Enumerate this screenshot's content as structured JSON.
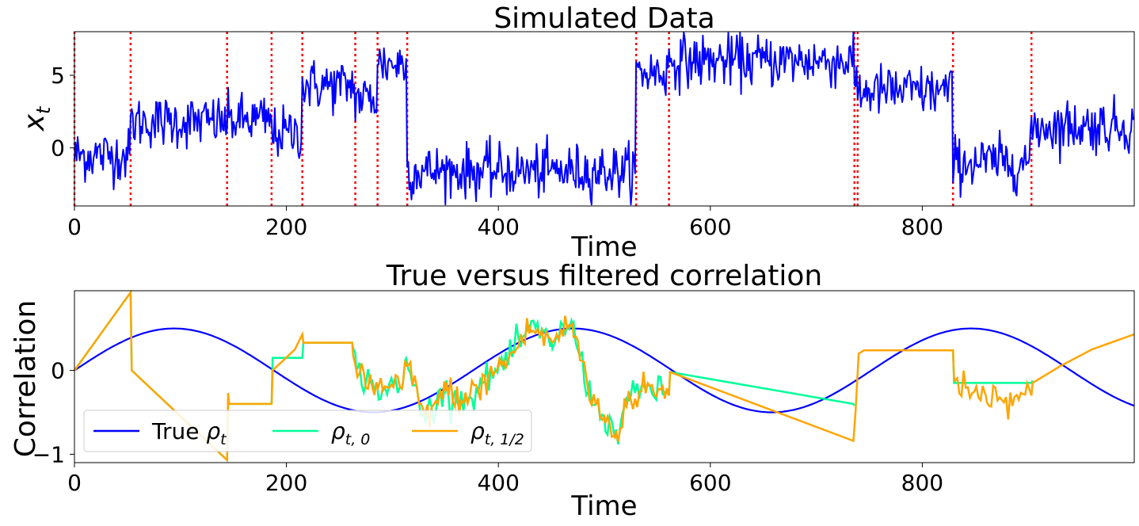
{
  "chart_data": [
    {
      "type": "line",
      "title": "Simulated Data",
      "xlabel": "Time",
      "ylabel": "x_t",
      "xlim": [
        0,
        1000
      ],
      "ylim": [
        -4,
        8
      ],
      "xticks": [
        0,
        200,
        400,
        600,
        800
      ],
      "yticks": [
        0,
        5
      ],
      "series": [
        {
          "name": "x_t",
          "color": "#0000ff",
          "segments": [
            {
              "start": 0,
              "end": 53,
              "mean": -0.5,
              "sd": 0.9
            },
            {
              "start": 53,
              "end": 144,
              "mean": 1.8,
              "sd": 0.9
            },
            {
              "start": 144,
              "end": 186,
              "mean": 1.9,
              "sd": 0.9
            },
            {
              "start": 186,
              "end": 215,
              "mean": 1.0,
              "sd": 0.9
            },
            {
              "start": 215,
              "end": 265,
              "mean": 4.3,
              "sd": 0.9
            },
            {
              "start": 265,
              "end": 286,
              "mean": 3.4,
              "sd": 0.9
            },
            {
              "start": 286,
              "end": 314,
              "mean": 5.8,
              "sd": 0.9
            },
            {
              "start": 314,
              "end": 530,
              "mean": -1.6,
              "sd": 0.9
            },
            {
              "start": 530,
              "end": 561,
              "mean": 5.2,
              "sd": 0.9
            },
            {
              "start": 561,
              "end": 736,
              "mean": 6.0,
              "sd": 0.9
            },
            {
              "start": 736,
              "end": 739,
              "mean": 4.7,
              "sd": 0.9
            },
            {
              "start": 739,
              "end": 829,
              "mean": 3.9,
              "sd": 0.9
            },
            {
              "start": 829,
              "end": 903,
              "mean": -1.0,
              "sd": 0.9
            },
            {
              "start": 903,
              "end": 1000,
              "mean": 1.5,
              "sd": 0.9
            }
          ]
        }
      ],
      "changepoints": {
        "color": "#ff0000",
        "values": [
          0,
          53,
          144,
          186,
          215,
          265,
          286,
          314,
          530,
          561,
          736,
          739,
          829,
          903
        ]
      }
    },
    {
      "type": "line",
      "title": "True versus filtered correlation",
      "xlabel": "Time",
      "ylabel": "Correlation",
      "xlim": [
        0,
        1000
      ],
      "ylim": [
        -1.1,
        0.95
      ],
      "xticks": [
        0,
        200,
        400,
        600,
        800
      ],
      "yticks": [
        -1,
        0
      ],
      "ytick_labels": [
        "−1",
        "0"
      ],
      "legend": {
        "placement": "lower-left",
        "ncol": 3
      },
      "series": [
        {
          "name": "True ρ_t",
          "legend_text": "True",
          "legend_symbol": "ρ",
          "legend_sub": "t",
          "color": "#0000ff",
          "kind": "sine",
          "amplitude": 0.5,
          "period": 376
        },
        {
          "name": "ρ_{t,0}",
          "legend_text": "",
          "legend_symbol": "ρ",
          "legend_sub": "t, 0",
          "color": "#00ff99",
          "kind": "filtered",
          "points": [
            [
              0,
              0
            ],
            [
              53,
              0.93
            ],
            [
              54,
              0.0
            ],
            [
              144,
              -1.07
            ],
            [
              145,
              -0.4
            ],
            [
              186,
              -0.4
            ],
            [
              187,
              0.15
            ],
            [
              215,
              0.15
            ],
            [
              216,
              0.33
            ],
            [
              262,
              0.33
            ],
            [
              266,
              0.0
            ],
            [
              286,
              -0.22
            ],
            [
              309,
              -0.22
            ],
            [
              312,
              0.12
            ],
            [
              330,
              -0.55
            ],
            [
              350,
              -0.25
            ],
            [
              370,
              -0.35
            ],
            [
              390,
              -0.1
            ],
            [
              410,
              0.15
            ],
            [
              430,
              0.5
            ],
            [
              450,
              0.35
            ],
            [
              470,
              0.55
            ],
            [
              485,
              -0.25
            ],
            [
              500,
              -0.55
            ],
            [
              510,
              -0.8
            ],
            [
              520,
              -0.4
            ],
            [
              540,
              -0.2
            ],
            [
              561,
              -0.3
            ],
            [
              562,
              -0.02
            ],
            [
              735,
              -0.4
            ],
            [
              736,
              -0.42
            ]
          ],
          "after": [
            [
              903,
              -0.15
            ],
            [
              904,
              -0.12
            ]
          ]
        },
        {
          "name": "ρ_{t,1/2}",
          "legend_text": "",
          "legend_symbol": "ρ",
          "legend_sub": "t, 1/2",
          "color": "#ffa500",
          "kind": "filtered",
          "points": [
            [
              0,
              0
            ],
            [
              53,
              0.93
            ],
            [
              54,
              0.0
            ],
            [
              144,
              -1.07
            ],
            [
              145,
              -0.27
            ],
            [
              146,
              -0.4
            ],
            [
              186,
              -0.4
            ],
            [
              187,
              0.0
            ],
            [
              208,
              0.25
            ],
            [
              215,
              0.43
            ],
            [
              216,
              0.33
            ],
            [
              262,
              0.33
            ],
            [
              266,
              0.0
            ],
            [
              286,
              -0.22
            ],
            [
              309,
              -0.22
            ],
            [
              312,
              0.12
            ],
            [
              330,
              -0.55
            ],
            [
              350,
              -0.25
            ],
            [
              370,
              -0.35
            ],
            [
              390,
              -0.1
            ],
            [
              410,
              0.15
            ],
            [
              430,
              0.5
            ],
            [
              450,
              0.35
            ],
            [
              470,
              0.55
            ],
            [
              485,
              -0.25
            ],
            [
              500,
              -0.55
            ],
            [
              510,
              -0.8
            ],
            [
              520,
              -0.4
            ],
            [
              540,
              -0.2
            ],
            [
              561,
              -0.3
            ],
            [
              562,
              -0.02
            ],
            [
              735,
              -0.84
            ],
            [
              737,
              -0.5
            ],
            [
              740,
              0.2
            ],
            [
              745,
              0.24
            ],
            [
              829,
              0.24
            ],
            [
              830,
              -0.1
            ],
            [
              860,
              -0.3
            ],
            [
              903,
              -0.3
            ],
            [
              904,
              -0.15
            ],
            [
              930,
              0.05
            ],
            [
              960,
              0.25
            ],
            [
              1000,
              0.43
            ]
          ]
        }
      ]
    }
  ]
}
